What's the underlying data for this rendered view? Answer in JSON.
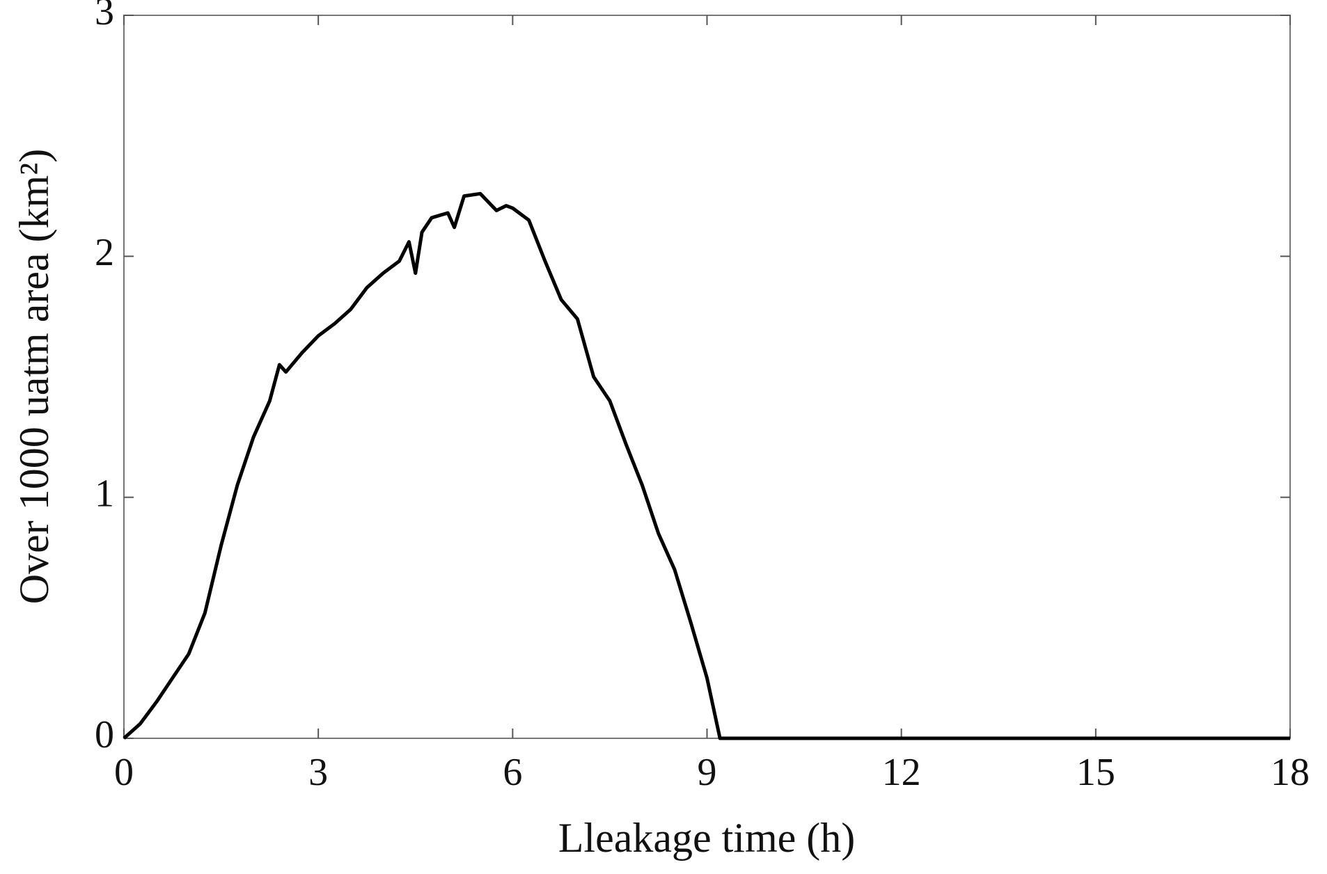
{
  "chart_data": {
    "type": "line",
    "x_label": "Lleakage time (h)",
    "y_label": "Over 1000 uatm area (km²)",
    "x": [
      0,
      0.25,
      0.5,
      0.75,
      1.0,
      1.25,
      1.5,
      1.75,
      2.0,
      2.25,
      2.4,
      2.5,
      2.75,
      3.0,
      3.25,
      3.5,
      3.75,
      4.0,
      4.25,
      4.4,
      4.5,
      4.6,
      4.75,
      5.0,
      5.1,
      5.25,
      5.5,
      5.75,
      5.9,
      6.0,
      6.25,
      6.5,
      6.75,
      7.0,
      7.25,
      7.5,
      7.75,
      8.0,
      8.25,
      8.5,
      8.75,
      9.0,
      9.2,
      18
    ],
    "series": [
      {
        "name": "area",
        "color": "#000000",
        "values": [
          0,
          0.06,
          0.15,
          0.25,
          0.35,
          0.52,
          0.8,
          1.05,
          1.25,
          1.4,
          1.55,
          1.52,
          1.6,
          1.67,
          1.72,
          1.78,
          1.87,
          1.93,
          1.98,
          2.06,
          1.93,
          2.1,
          2.16,
          2.18,
          2.12,
          2.25,
          2.26,
          2.19,
          2.21,
          2.2,
          2.15,
          1.98,
          1.82,
          1.74,
          1.5,
          1.4,
          1.22,
          1.05,
          0.85,
          0.7,
          0.48,
          0.25,
          0,
          0
        ]
      }
    ],
    "xlim": [
      0,
      18
    ],
    "ylim": [
      0,
      3
    ],
    "xticks": [
      0,
      3,
      6,
      9,
      12,
      15,
      18
    ],
    "yticks": [
      0,
      1,
      2,
      3
    ]
  }
}
